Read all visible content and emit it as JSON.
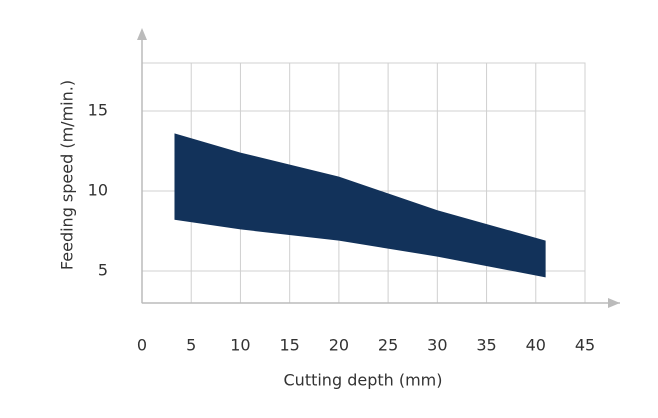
{
  "chart_data": {
    "type": "range-area",
    "x_label": "Cutting depth (mm)",
    "y_label": "Feeding speed (m/min.)",
    "x": [
      3.3,
      10,
      20,
      30,
      41
    ],
    "y_upper": [
      13.6,
      12.4,
      10.9,
      8.8,
      6.9
    ],
    "y_lower": [
      8.2,
      7.6,
      6.9,
      5.9,
      4.6
    ],
    "color": "#12325a",
    "xlim": [
      0,
      45
    ],
    "xticks": [
      0,
      5,
      10,
      15,
      20,
      25,
      30,
      35,
      40,
      45
    ],
    "ylim": [
      3,
      18
    ],
    "yticks": [
      5,
      10,
      15
    ],
    "grid": true
  }
}
